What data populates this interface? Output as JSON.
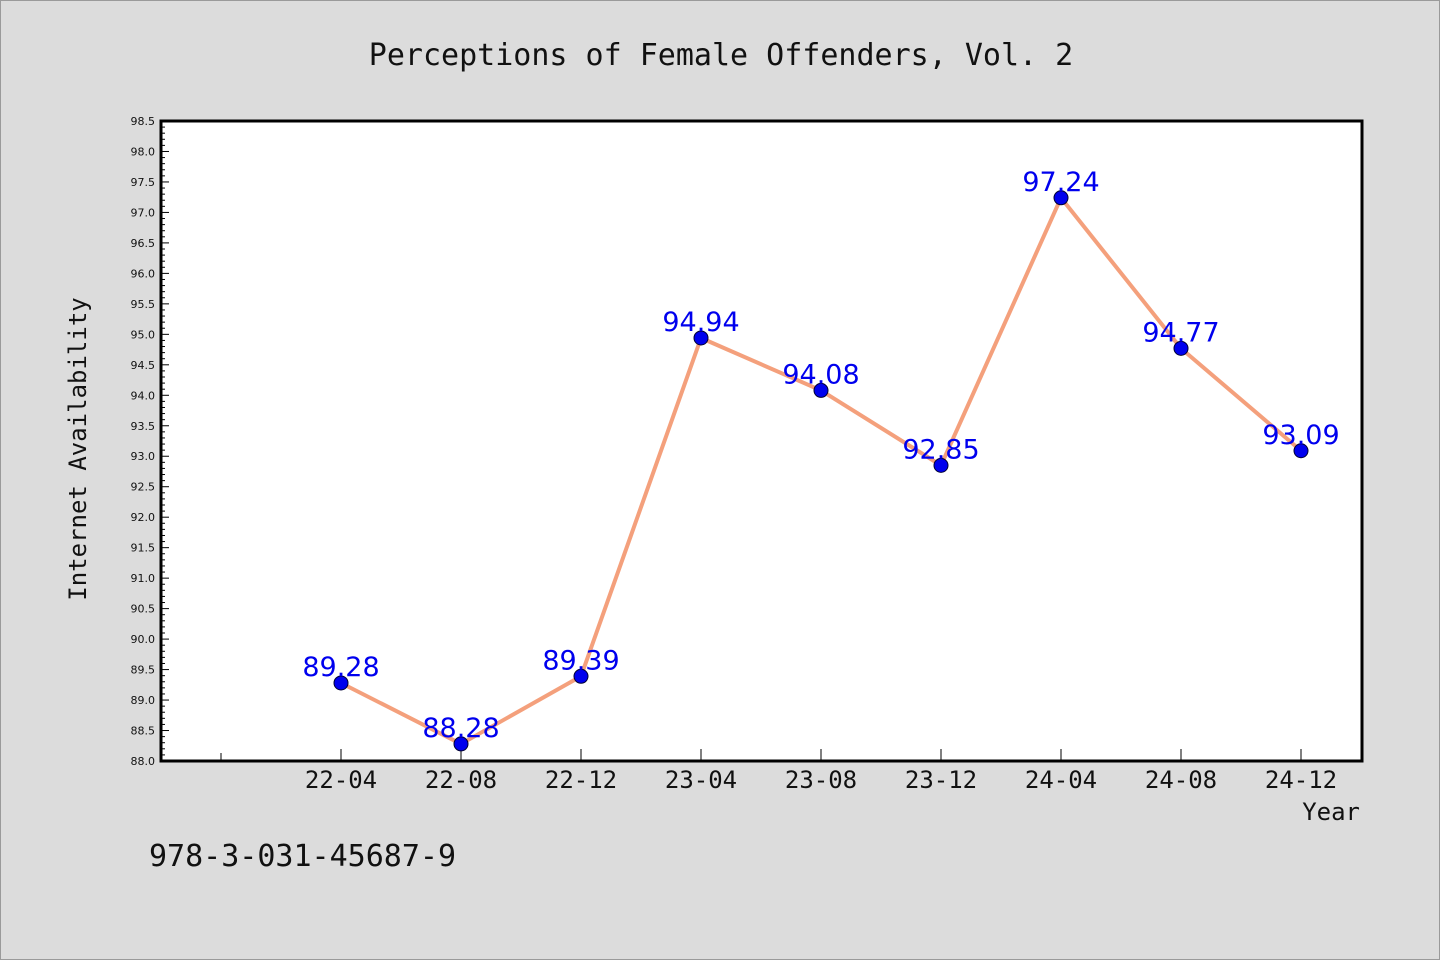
{
  "chart_data": {
    "type": "line",
    "title": "Perceptions of Female Offenders, Vol. 2",
    "xlabel": "Year",
    "ylabel": "Internet Availability",
    "categories": [
      "22-04",
      "22-08",
      "22-12",
      "23-04",
      "23-08",
      "23-12",
      "24-04",
      "24-08",
      "24-12"
    ],
    "series": [
      {
        "values": [
          89.28,
          88.28,
          89.39,
          94.94,
          94.08,
          92.85,
          97.24,
          94.77,
          93.09
        ]
      }
    ],
    "data_labels": [
      "89.28",
      "88.28",
      "89.39",
      "94.94",
      "94.08",
      "92.85",
      "97.24",
      "94.77",
      "93.09"
    ],
    "ylim": [
      88.0,
      98.5
    ],
    "yticks": [
      "88.0",
      "88.5",
      "89.0",
      "89.5",
      "90.0",
      "90.5",
      "91.0",
      "91.5",
      "92.0",
      "92.5",
      "93.0",
      "93.5",
      "94.0",
      "94.5",
      "95.0",
      "95.5",
      "96.0",
      "96.5",
      "97.0",
      "97.5",
      "98.0",
      "98.5"
    ],
    "grid": false,
    "line_color": "#f4a07c",
    "marker_color": "#0000ee",
    "label_color": "#0000ee"
  },
  "footer": {
    "isbn": "978-3-031-45687-9"
  }
}
